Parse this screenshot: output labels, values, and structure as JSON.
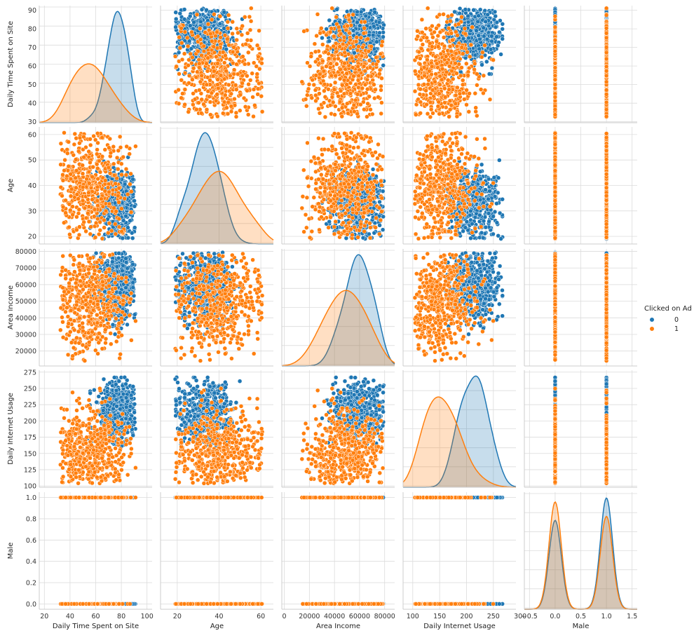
{
  "chart_data": {
    "type": "scatter",
    "variables": [
      {
        "name": "Daily Time Spent on Site",
        "ticks": [
          20,
          40,
          60,
          80,
          100
        ],
        "ylim_ticks": [
          30,
          40,
          50,
          60,
          70,
          80,
          90
        ]
      },
      {
        "name": "Age",
        "ticks": [
          20,
          40,
          60
        ],
        "ylim_ticks": [
          20,
          30,
          40,
          50,
          60
        ]
      },
      {
        "name": "Area Income",
        "ticks": [
          0,
          20000,
          40000,
          60000,
          80000
        ],
        "ylim_ticks": [
          20000,
          30000,
          40000,
          50000,
          60000,
          70000,
          80000
        ]
      },
      {
        "name": "Daily Internet Usage",
        "ticks": [
          100,
          150,
          200,
          250,
          300
        ],
        "ylim_ticks": [
          100,
          125,
          150,
          175,
          200,
          225,
          250,
          275
        ]
      },
      {
        "name": "Male",
        "ticks": [
          -0.5,
          0.0,
          0.5,
          1.0,
          1.5
        ],
        "ylim_ticks": [
          0.0,
          0.2,
          0.4,
          0.6,
          0.8,
          1.0
        ]
      }
    ],
    "tick_labels_x": [
      [
        "20",
        "40",
        "60",
        "80",
        "100"
      ],
      [
        "20",
        "40",
        "60"
      ],
      [
        "0",
        "20000",
        "40000",
        "60000",
        "80000"
      ],
      [
        "100",
        "150",
        "200",
        "250",
        "300"
      ],
      [
        "−0.5",
        "0.0",
        "0.5",
        "1.0",
        "1.5"
      ]
    ],
    "tick_labels_y": [
      [
        "30",
        "40",
        "50",
        "60",
        "70",
        "80",
        "90"
      ],
      [
        "20",
        "30",
        "40",
        "50",
        "60"
      ],
      [
        "20000",
        "30000",
        "40000",
        "50000",
        "60000",
        "70000",
        "80000"
      ],
      [
        "100",
        "125",
        "150",
        "175",
        "200",
        "225",
        "250",
        "275"
      ],
      [
        "0.0",
        "0.2",
        "0.4",
        "0.6",
        "0.8",
        "1.0"
      ]
    ],
    "hue": {
      "title": "Clicked on Ad",
      "levels": [
        {
          "label": "0",
          "color": "#1f77b4"
        },
        {
          "label": "1",
          "color": "#ff7f0e"
        }
      ]
    },
    "groups": [
      {
        "label": "0",
        "mean": [
          77,
          32,
          61000,
          214,
          0.5
        ],
        "sd": [
          6.5,
          5.5,
          9500,
          22,
          0
        ],
        "range_min": [
          52,
          19,
          30000,
          160,
          0
        ],
        "range_max": [
          91,
          53,
          79500,
          267,
          1
        ]
      },
      {
        "label": "1",
        "mean": [
          53,
          40,
          48000,
          145,
          0.5
        ],
        "sd": [
          13,
          8.8,
          14000,
          30,
          0
        ],
        "range_min": [
          32.5,
          19,
          13500,
          104,
          0
        ],
        "range_max": [
          91.4,
          61,
          79000,
          270,
          1
        ]
      }
    ],
    "grid": true,
    "legend_placement": "right"
  }
}
